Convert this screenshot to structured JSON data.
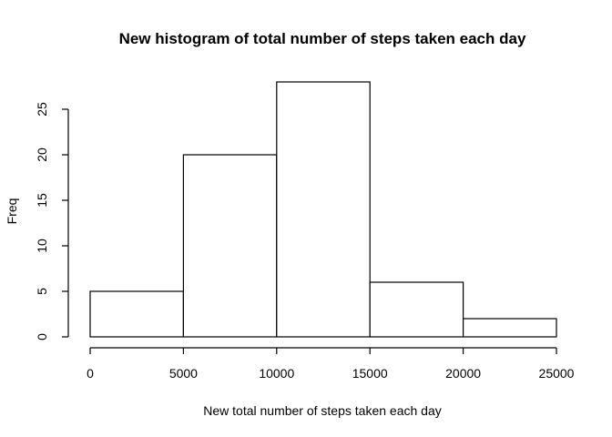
{
  "chart_data": {
    "type": "bar",
    "title": "New histogram of total number of steps taken each day",
    "xlabel": "New total number of steps taken each day",
    "ylabel": "Freq",
    "bins": [
      {
        "start": 0,
        "end": 5000,
        "count": 5
      },
      {
        "start": 5000,
        "end": 10000,
        "count": 20
      },
      {
        "start": 10000,
        "end": 15000,
        "count": 28
      },
      {
        "start": 15000,
        "end": 20000,
        "count": 6
      },
      {
        "start": 20000,
        "end": 25000,
        "count": 2
      }
    ],
    "xlim": [
      0,
      25000
    ],
    "ylim": [
      0,
      30
    ],
    "x_ticks": [
      "0",
      "5000",
      "10000",
      "15000",
      "20000",
      "25000"
    ],
    "y_ticks": [
      "0",
      "5",
      "10",
      "15",
      "20",
      "25"
    ],
    "grid": false,
    "legend": "none"
  }
}
